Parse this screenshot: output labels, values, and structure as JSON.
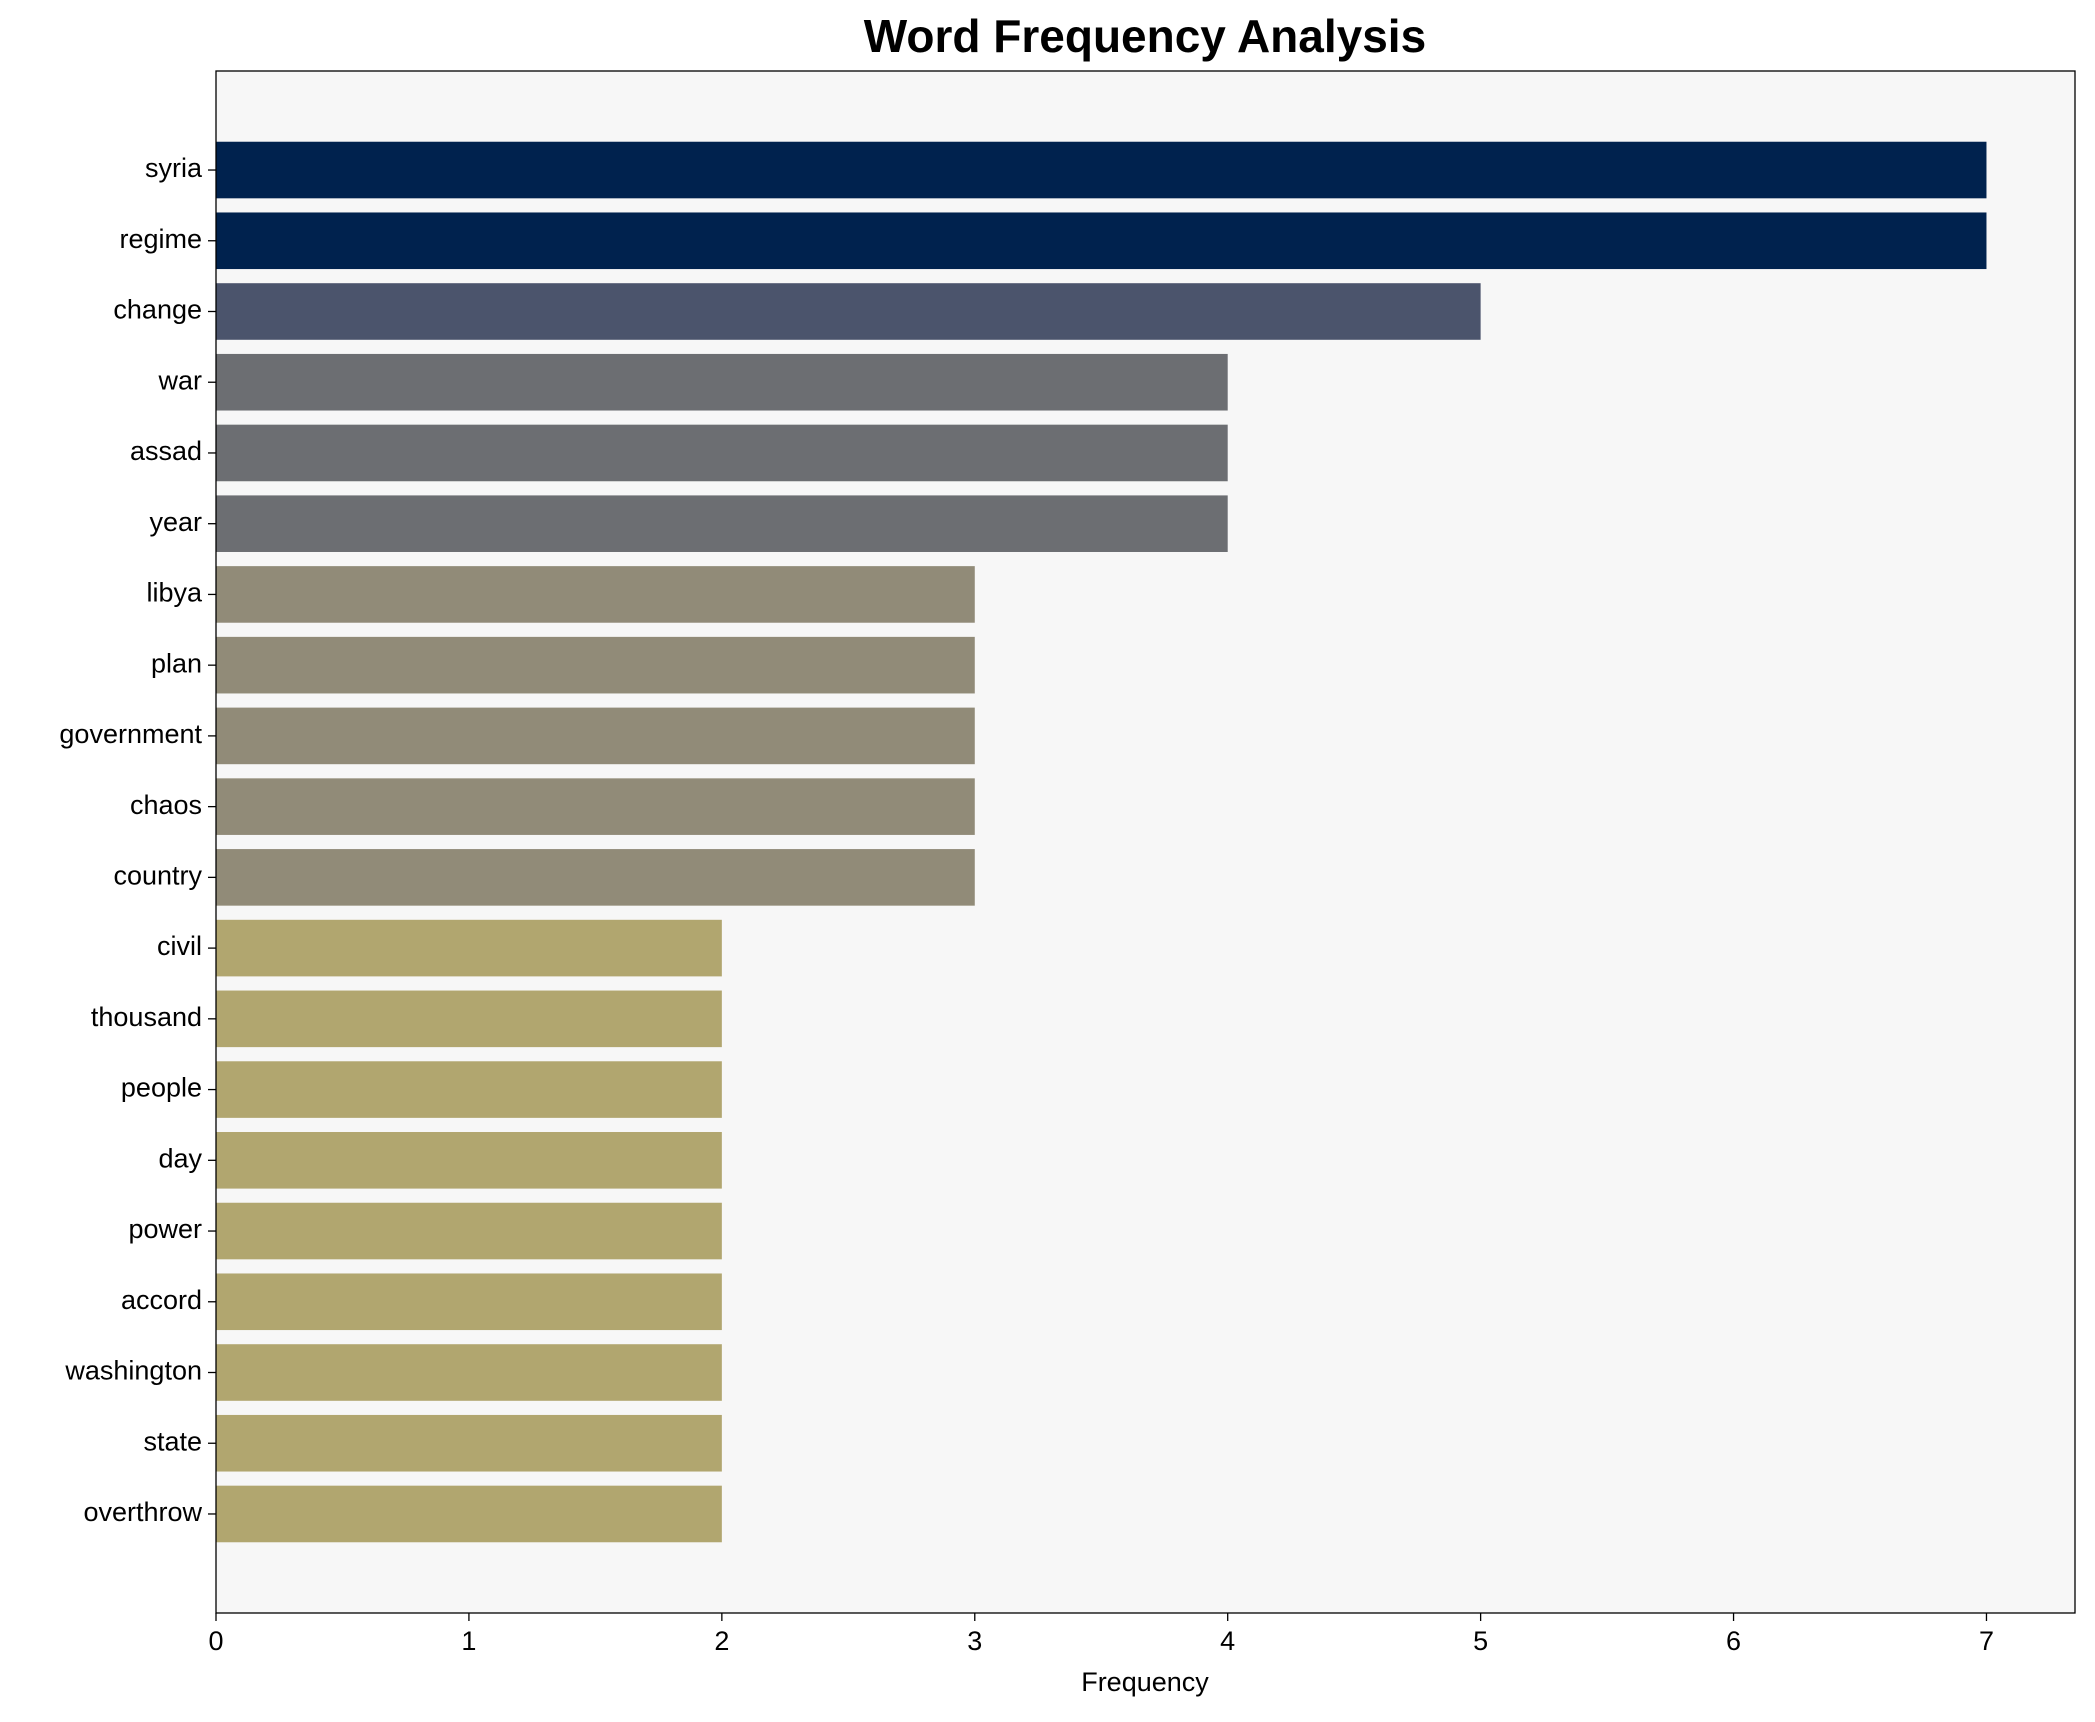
{
  "chart_data": {
    "type": "barh",
    "title": "Word Frequency Analysis",
    "x_label": "Frequency",
    "categories": [
      "syria",
      "regime",
      "change",
      "war",
      "assad",
      "year",
      "libya",
      "plan",
      "government",
      "chaos",
      "country",
      "civil",
      "thousand",
      "people",
      "day",
      "power",
      "accord",
      "washington",
      "state",
      "overthrow"
    ],
    "values": [
      7,
      7,
      5,
      4,
      4,
      4,
      3,
      3,
      3,
      3,
      3,
      2,
      2,
      2,
      2,
      2,
      2,
      2,
      2,
      2
    ],
    "colors": [
      "#00224e",
      "#00224e",
      "#4b546c",
      "#6c6e72",
      "#6c6e72",
      "#6c6e72",
      "#918b78",
      "#918b78",
      "#918b78",
      "#918b78",
      "#918b78",
      "#b1a66f",
      "#b1a66f",
      "#b1a66f",
      "#b1a66f",
      "#b1a66f",
      "#b1a66f",
      "#b1a66f",
      "#b1a66f",
      "#b1a66f"
    ],
    "xlim": [
      0,
      7.35
    ],
    "xticks": [
      0,
      1,
      2,
      3,
      4,
      5,
      6,
      7
    ],
    "grid": false,
    "plot_background": "#f7f7f7"
  }
}
